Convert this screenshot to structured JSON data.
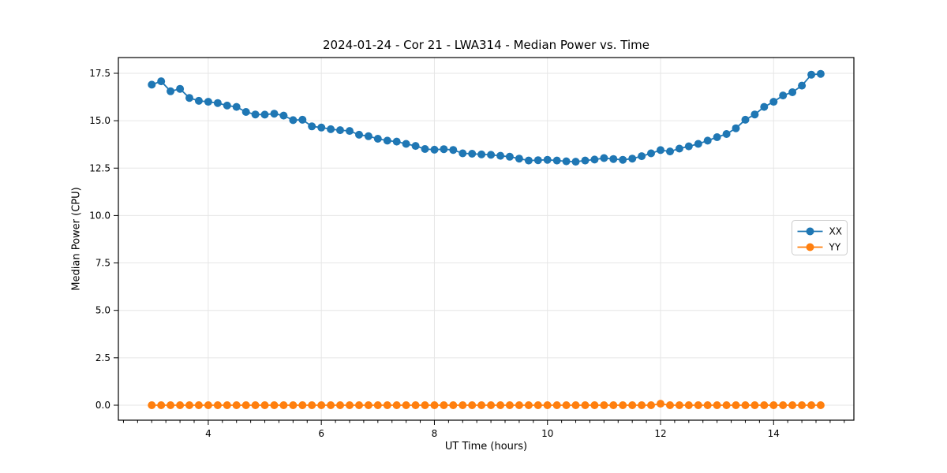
{
  "chart_data": {
    "type": "line",
    "title": "2024-01-24 - Cor 21 - LWA314 - Median Power vs. Time",
    "xlabel": "UT Time (hours)",
    "ylabel": "Median Power (CPU)",
    "xlim": [
      2.41,
      15.42
    ],
    "ylim": [
      -0.79,
      18.33
    ],
    "grid": true,
    "x_minor_step": 0.25,
    "x_ticks": {
      "values": [
        4,
        6,
        8,
        10,
        12,
        14
      ],
      "labels": [
        "4",
        "6",
        "8",
        "10",
        "12",
        "14"
      ]
    },
    "y_ticks": {
      "values": [
        0.0,
        2.5,
        5.0,
        7.5,
        10.0,
        12.5,
        15.0,
        17.5
      ],
      "labels": [
        "0.0",
        "2.5",
        "5.0",
        "7.5",
        "10.0",
        "12.5",
        "15.0",
        "17.5"
      ]
    },
    "legend": {
      "location": "center right",
      "entries": [
        "XX",
        "YY"
      ]
    },
    "x": [
      3.0,
      3.167,
      3.333,
      3.5,
      3.667,
      3.833,
      4.0,
      4.167,
      4.333,
      4.5,
      4.667,
      4.833,
      5.0,
      5.167,
      5.333,
      5.5,
      5.667,
      5.833,
      6.0,
      6.167,
      6.333,
      6.5,
      6.667,
      6.833,
      7.0,
      7.167,
      7.333,
      7.5,
      7.667,
      7.833,
      8.0,
      8.167,
      8.333,
      8.5,
      8.667,
      8.833,
      9.0,
      9.167,
      9.333,
      9.5,
      9.667,
      9.833,
      10.0,
      10.167,
      10.333,
      10.5,
      10.667,
      10.833,
      11.0,
      11.167,
      11.333,
      11.5,
      11.667,
      11.833,
      12.0,
      12.167,
      12.333,
      12.5,
      12.667,
      12.833,
      13.0,
      13.167,
      13.333,
      13.5,
      13.667,
      13.833,
      14.0,
      14.167,
      14.333,
      14.5,
      14.667,
      14.833
    ],
    "series": [
      {
        "name": "XX",
        "color": "#1f77b4",
        "values": [
          16.9,
          17.08,
          16.55,
          16.68,
          16.2,
          16.05,
          16.0,
          15.93,
          15.8,
          15.73,
          15.46,
          15.33,
          15.32,
          15.37,
          15.27,
          15.03,
          15.05,
          14.7,
          14.64,
          14.55,
          14.5,
          14.46,
          14.26,
          14.18,
          14.05,
          13.95,
          13.9,
          13.78,
          13.67,
          13.51,
          13.47,
          13.5,
          13.46,
          13.28,
          13.26,
          13.22,
          13.2,
          13.15,
          13.1,
          13.0,
          12.9,
          12.92,
          12.94,
          12.9,
          12.86,
          12.84,
          12.9,
          12.95,
          13.03,
          12.98,
          12.94,
          13.0,
          13.13,
          13.28,
          13.45,
          13.38,
          13.53,
          13.65,
          13.78,
          13.95,
          14.13,
          14.3,
          14.6,
          15.05,
          15.33,
          15.73,
          16.0,
          16.33,
          16.5,
          16.85,
          17.43,
          17.47
        ]
      },
      {
        "name": "YY",
        "color": "#ff7f0e",
        "values": [
          0,
          0,
          0,
          0,
          0,
          0,
          0,
          0,
          0,
          0,
          0,
          0,
          0,
          0,
          0,
          0,
          0,
          0,
          0,
          0,
          0,
          0,
          0,
          0,
          0,
          0,
          0,
          0,
          0,
          0,
          0,
          0,
          0,
          0,
          0,
          0,
          0,
          0,
          0,
          0,
          0,
          0,
          0,
          0,
          0,
          0,
          0,
          0,
          0,
          0,
          0,
          0,
          0,
          0,
          0.08,
          0,
          0,
          0,
          0,
          0,
          0,
          0,
          0,
          0,
          0,
          0,
          0,
          0,
          0,
          0,
          0,
          0
        ]
      }
    ]
  },
  "colors": {
    "series_xx": "#1f77b4",
    "series_yy": "#ff7f0e",
    "grid": "#e6e6e6",
    "spine": "#000000",
    "legend_border": "#cccccc",
    "background": "#ffffff"
  }
}
